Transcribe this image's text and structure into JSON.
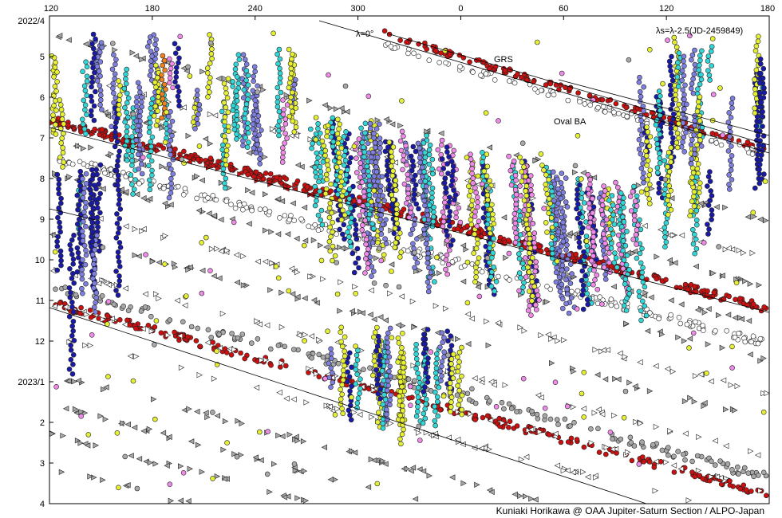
{
  "chart_data": {
    "type": "scatter",
    "title": "",
    "x_axis": {
      "label": "",
      "tick_labels": [
        "120",
        "180",
        "240",
        "300",
        "0",
        "60",
        "120",
        "180"
      ],
      "range_desc": "longitude 120 → 360/0 → 180 (wraps through 0)"
    },
    "y_axis": {
      "label": "",
      "tick_labels": [
        "2022/4",
        "5",
        "6",
        "7",
        "8",
        "9",
        "10",
        "11",
        "12",
        "2023/1",
        "2",
        "3",
        "4"
      ],
      "range_desc": "date 2022/4 (top) to 2023/4 (bottom)"
    },
    "annotations": {
      "formula": "λs=λ-2.5(JD-2459849)",
      "lambda_zero": "λ=0°",
      "grs": "GRS",
      "oval_ba": "Oval BA"
    },
    "credit": "Kuniaki Horikawa @ OAA Jupiter-Saturn Section / ALPO-Japan",
    "colors": {
      "red": "#cc1010",
      "darkblue": "#1a1aa8",
      "mediumblue": "#7f7fe0",
      "cyan": "#33d6d6",
      "yellow": "#e6f033",
      "pink": "#f08ae8",
      "gray": "#a8a8a8",
      "orange": "#f08020",
      "white": "#ffffff"
    },
    "grid": false,
    "legend": "none",
    "trends": [
      {
        "name": "λ=0° drift line",
        "lon_start": 330,
        "date_start": "2022/3/25",
        "lon_end": 180,
        "date_end": "2022/7/20"
      },
      {
        "name": "GRS track",
        "lon_start": 60,
        "date_start": "2022/4/10",
        "lon_end": 180,
        "date_end": "2022/7/15"
      },
      {
        "name": "Oval BA track",
        "lon_start": 0,
        "date_start": "2022/5/20",
        "lon_end": 180,
        "date_end": "2022/8/25"
      }
    ]
  }
}
